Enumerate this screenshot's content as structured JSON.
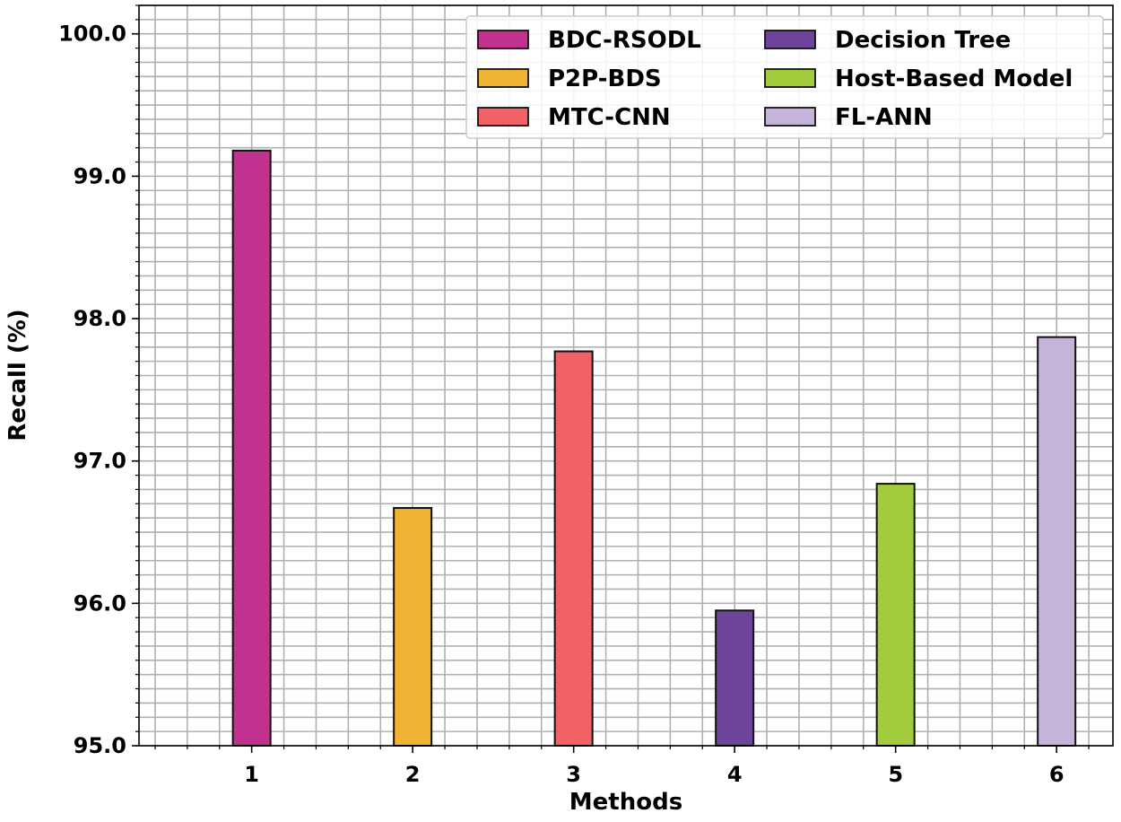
{
  "chart_data": {
    "type": "bar",
    "categories": [
      "1",
      "2",
      "3",
      "4",
      "5",
      "6"
    ],
    "series": [
      {
        "name": "BDC-RSODL",
        "category": "1",
        "value": 99.18,
        "color": "#c0328e"
      },
      {
        "name": "P2P-BDS",
        "category": "2",
        "value": 96.67,
        "color": "#f0b432"
      },
      {
        "name": "MTC-CNN",
        "category": "3",
        "value": 97.77,
        "color": "#f06266"
      },
      {
        "name": "Decision Tree",
        "category": "4",
        "value": 95.95,
        "color": "#6e439a"
      },
      {
        "name": "Host-Based Model",
        "category": "5",
        "value": 96.84,
        "color": "#a3cc3c"
      },
      {
        "name": "FL-ANN",
        "category": "6",
        "value": 97.87,
        "color": "#c5b4d9"
      }
    ],
    "xlabel": "Methods",
    "ylabel": "Recall (%)",
    "ylim": [
      95.0,
      100.2
    ],
    "yticks": [
      "95.0",
      "96.0",
      "97.0",
      "98.0",
      "99.0",
      "100.0"
    ],
    "grid": true,
    "legend_position": "top-right",
    "legend_columns": 2
  }
}
